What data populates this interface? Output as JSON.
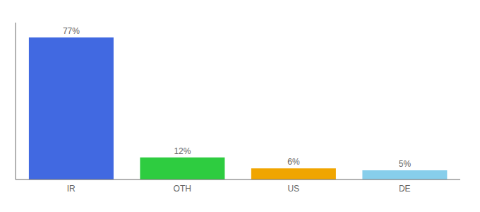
{
  "chart_data": {
    "type": "bar",
    "categories": [
      "IR",
      "OTH",
      "US",
      "DE"
    ],
    "values": [
      77,
      12,
      6,
      5
    ],
    "value_labels": [
      "77%",
      "12%",
      "6%",
      "5%"
    ],
    "data_labels": true,
    "colors": [
      "#4169e1",
      "#2ecc40",
      "#f0a500",
      "#87ceeb"
    ],
    "ylim": [
      0,
      85
    ],
    "grid": false,
    "tick_labels": "x"
  }
}
